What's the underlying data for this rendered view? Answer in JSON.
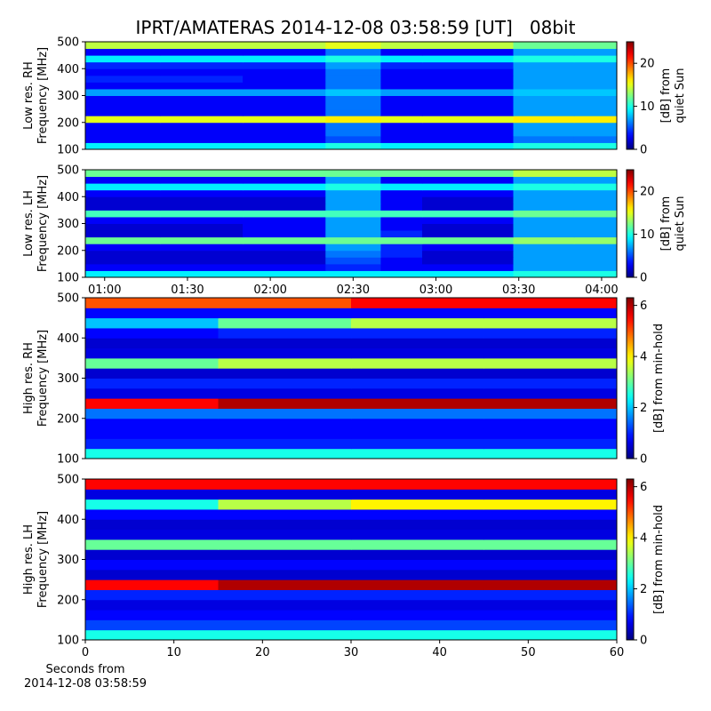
{
  "chart_data": [
    {
      "type": "heatmap",
      "title": "IPRT/AMATERAS 2014-12-08 03:58:59 [UT]   08bit",
      "ylabel": [
        "Low res. RH",
        "Frequency [MHz]"
      ],
      "colorbar_label": [
        "[dB] from",
        "quiet Sun"
      ],
      "colormap": "jet",
      "xlim": [
        53,
        245.5
      ],
      "ylim": [
        100,
        500
      ],
      "yticks": [
        100,
        200,
        300,
        400,
        500
      ],
      "zlim": [
        0,
        25
      ],
      "zticks": [
        0,
        10,
        20
      ],
      "xbins": [
        53,
        80,
        110,
        140,
        160,
        175,
        208,
        230,
        245.5
      ],
      "ybins": [
        100,
        125,
        150,
        175,
        200,
        225,
        250,
        275,
        300,
        325,
        350,
        375,
        400,
        425,
        450,
        475,
        500
      ],
      "z": [
        [
          9,
          9,
          9,
          10,
          9,
          9,
          10,
          10
        ],
        [
          3,
          3,
          3,
          5,
          3,
          3,
          6,
          6
        ],
        [
          3,
          3,
          3,
          6,
          3,
          3,
          7,
          7
        ],
        [
          3,
          3,
          3,
          6,
          3,
          3,
          7,
          7
        ],
        [
          15,
          15,
          15,
          16,
          15,
          15,
          16,
          16
        ],
        [
          3,
          3,
          3,
          6,
          3,
          3,
          7,
          7
        ],
        [
          3,
          3,
          3,
          6,
          3,
          3,
          7,
          7
        ],
        [
          3,
          3,
          3,
          6,
          3,
          3,
          7,
          7
        ],
        [
          7,
          7,
          7,
          8,
          7,
          7,
          8,
          8
        ],
        [
          3,
          3,
          3,
          6,
          3,
          3,
          7,
          7
        ],
        [
          4,
          4,
          3,
          6,
          3,
          3,
          7,
          7
        ],
        [
          3,
          3,
          3,
          6,
          3,
          3,
          7,
          7
        ],
        [
          4,
          4,
          4,
          7,
          4,
          4,
          7,
          7
        ],
        [
          9,
          9,
          9,
          10,
          9,
          9,
          10,
          10
        ],
        [
          3,
          3,
          3,
          6,
          3,
          3,
          7,
          7
        ],
        [
          14,
          14,
          14,
          15,
          14,
          14,
          12,
          12
        ]
      ]
    },
    {
      "type": "heatmap",
      "ylabel": [
        "Low res. LH",
        "Frequency [MHz]"
      ],
      "colorbar_label": [
        "[dB] from",
        "quiet Sun"
      ],
      "colormap": "jet",
      "xlim": [
        53,
        245.5
      ],
      "ylim": [
        100,
        500
      ],
      "yticks": [
        100,
        200,
        300,
        400,
        500
      ],
      "xticks": [
        {
          "value": 60,
          "label": "01:00"
        },
        {
          "value": 90,
          "label": "01:30"
        },
        {
          "value": 120,
          "label": "02:00"
        },
        {
          "value": 150,
          "label": "02:30"
        },
        {
          "value": 180,
          "label": "03:00"
        },
        {
          "value": 210,
          "label": "03:30"
        },
        {
          "value": 240,
          "label": "04:00"
        }
      ],
      "zlim": [
        0,
        25
      ],
      "zticks": [
        0,
        10,
        20
      ],
      "xbins": [
        53,
        80,
        110,
        140,
        160,
        175,
        208,
        230,
        245.5
      ],
      "ybins": [
        100,
        125,
        150,
        175,
        200,
        225,
        250,
        275,
        300,
        325,
        350,
        375,
        400,
        425,
        450,
        475,
        500
      ],
      "z": [
        [
          9,
          9,
          9,
          9,
          9,
          9,
          10,
          10
        ],
        [
          3,
          3,
          3,
          4,
          3,
          3,
          7,
          7
        ],
        [
          2,
          2,
          2,
          5,
          3,
          2,
          7,
          7
        ],
        [
          2,
          2,
          2,
          6,
          4,
          2,
          7,
          7
        ],
        [
          3,
          3,
          3,
          7,
          4,
          3,
          7,
          7
        ],
        [
          12,
          12,
          12,
          12,
          12,
          12,
          13,
          13
        ],
        [
          2,
          2,
          3,
          7,
          4,
          2,
          7,
          7
        ],
        [
          2,
          2,
          3,
          7,
          3,
          2,
          7,
          7
        ],
        [
          3,
          3,
          3,
          7,
          3,
          3,
          7,
          7
        ],
        [
          11,
          11,
          11,
          11,
          11,
          11,
          12,
          12
        ],
        [
          2,
          2,
          2,
          7,
          3,
          2,
          7,
          7
        ],
        [
          2,
          2,
          2,
          7,
          3,
          2,
          7,
          7
        ],
        [
          3,
          3,
          3,
          7,
          3,
          3,
          7,
          7
        ],
        [
          9,
          9,
          9,
          10,
          9,
          9,
          10,
          10
        ],
        [
          3,
          3,
          3,
          7,
          3,
          3,
          7,
          7
        ],
        [
          12,
          12,
          12,
          12,
          12,
          12,
          14,
          14
        ]
      ]
    },
    {
      "type": "heatmap",
      "ylabel": [
        "High res. RH",
        "Frequency [MHz]"
      ],
      "colorbar_label": [
        "[dB] from min-hold"
      ],
      "colormap": "jet",
      "xlim": [
        0,
        60
      ],
      "ylim": [
        100,
        500
      ],
      "yticks": [
        100,
        200,
        300,
        400,
        500
      ],
      "zlim": [
        0,
        6.3
      ],
      "zticks": [
        0,
        2,
        4,
        6
      ],
      "xbins": [
        0,
        15,
        30,
        45,
        60
      ],
      "ybins": [
        100,
        125,
        150,
        175,
        200,
        225,
        250,
        275,
        300,
        325,
        350,
        375,
        400,
        425,
        450,
        475,
        500
      ],
      "z": [
        [
          2.5,
          2.5,
          2.5,
          2.5
        ],
        [
          1,
          1,
          1,
          1
        ],
        [
          0.8,
          0.8,
          0.8,
          0.8
        ],
        [
          0.8,
          0.8,
          0.8,
          0.8
        ],
        [
          1.5,
          1.5,
          1.5,
          1.5
        ],
        [
          5.5,
          6,
          6,
          6
        ],
        [
          0.6,
          0.6,
          0.6,
          0.6
        ],
        [
          1,
          1,
          1,
          1
        ],
        [
          0.5,
          0.5,
          0.5,
          0.5
        ],
        [
          3,
          3.5,
          3.5,
          3.5
        ],
        [
          0.6,
          0.6,
          0.6,
          0.6
        ],
        [
          0.5,
          0.5,
          0.5,
          0.5
        ],
        [
          0.8,
          1,
          1,
          1
        ],
        [
          2,
          3,
          3.5,
          3.5
        ],
        [
          0.8,
          0.8,
          0.8,
          0.8
        ],
        [
          5,
          5,
          5.5,
          5.5
        ]
      ]
    },
    {
      "type": "heatmap",
      "ylabel": [
        "High res. LH",
        "Frequency [MHz]"
      ],
      "colorbar_label": [
        "[dB] from min-hold"
      ],
      "colormap": "jet",
      "xlim": [
        0,
        60
      ],
      "ylim": [
        100,
        500
      ],
      "yticks": [
        100,
        200,
        300,
        400,
        500
      ],
      "xticks": [
        0,
        10,
        20,
        30,
        40,
        50,
        60
      ],
      "xlabel": [
        "Seconds from",
        "2014-12-08 03:58:59"
      ],
      "zlim": [
        0,
        6.3
      ],
      "zticks": [
        0,
        2,
        4,
        6
      ],
      "xbins": [
        0,
        15,
        30,
        45,
        60
      ],
      "ybins": [
        100,
        125,
        150,
        175,
        200,
        225,
        250,
        275,
        300,
        325,
        350,
        375,
        400,
        425,
        450,
        475,
        500
      ],
      "z": [
        [
          2.5,
          2.5,
          2.5,
          2.5
        ],
        [
          1.2,
          1.2,
          1.2,
          1.2
        ],
        [
          0.8,
          0.8,
          0.8,
          0.8
        ],
        [
          0.6,
          0.6,
          0.6,
          0.6
        ],
        [
          1,
          1,
          1,
          1
        ],
        [
          5.5,
          6,
          6,
          6
        ],
        [
          0.5,
          0.5,
          0.5,
          0.5
        ],
        [
          0.8,
          0.8,
          0.8,
          0.8
        ],
        [
          0.5,
          0.5,
          0.5,
          0.5
        ],
        [
          3,
          3,
          3,
          3
        ],
        [
          0.6,
          0.6,
          0.6,
          0.6
        ],
        [
          0.5,
          0.5,
          0.5,
          0.5
        ],
        [
          0.8,
          0.8,
          0.8,
          0.8
        ],
        [
          2.5,
          3.5,
          4,
          4
        ],
        [
          0.6,
          0.6,
          0.6,
          0.6
        ],
        [
          5.5,
          5.5,
          5.5,
          5.5
        ]
      ]
    }
  ]
}
